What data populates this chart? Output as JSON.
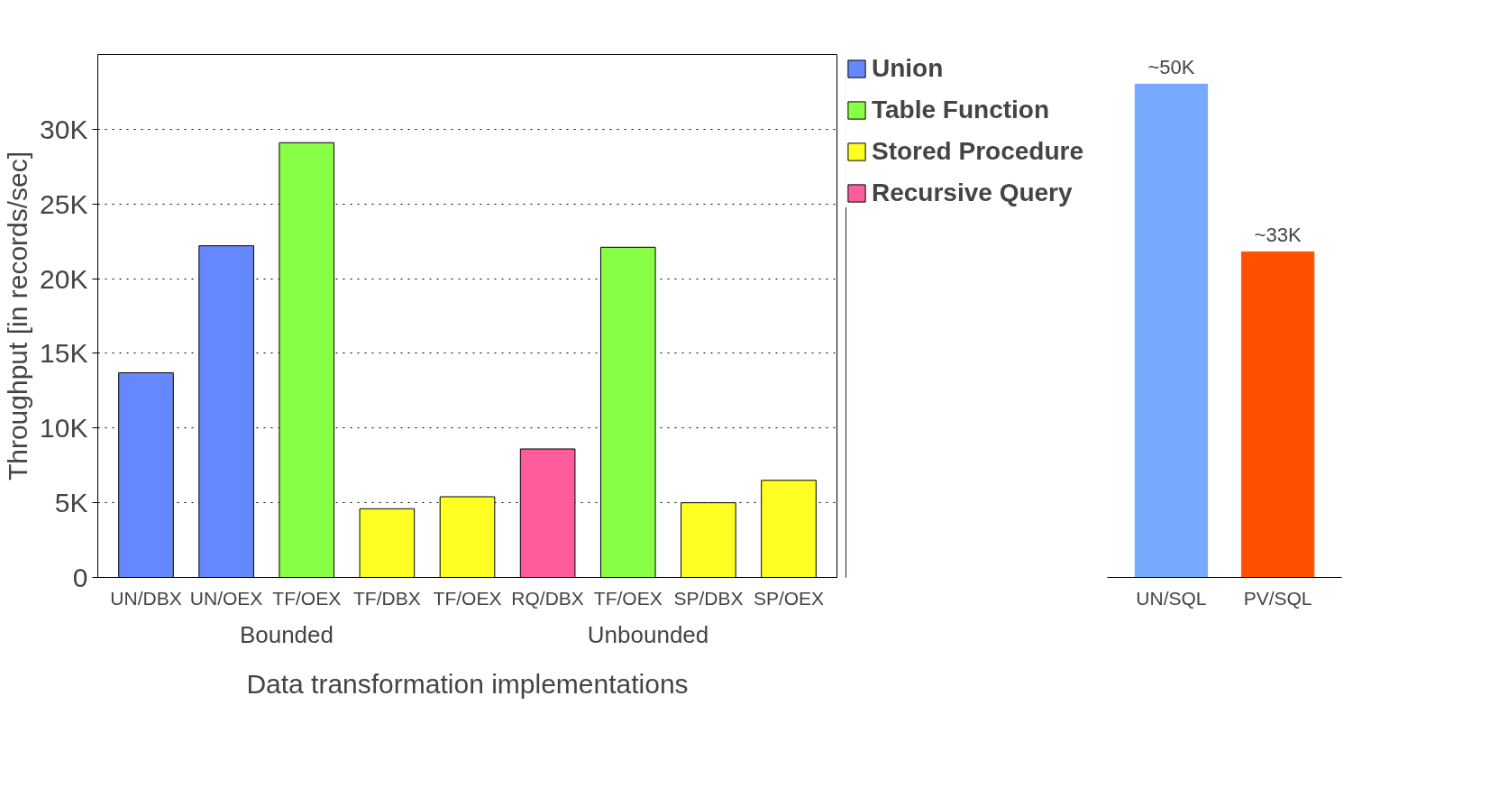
{
  "chart_data": [
    {
      "type": "bar",
      "ylabel": "Throughput [in records/sec]",
      "xlabel": "Data transformation implementations",
      "categories": [
        "UN/DBX",
        "UN/OEX",
        "TF/OEX",
        "TF/DBX",
        "TF/OEX",
        "RQ/DBX",
        "TF/OEX",
        "SP/DBX",
        "SP/OEX"
      ],
      "series": [
        {
          "name": "Union",
          "color": "#6688ff",
          "values": [
            13700,
            22200,
            null,
            null,
            null,
            null,
            null,
            null,
            null
          ]
        },
        {
          "name": "Table Function",
          "color": "#88ff44",
          "values": [
            null,
            null,
            29100,
            null,
            null,
            null,
            22100,
            null,
            null
          ]
        },
        {
          "name": "Stored Procedure",
          "color": "#ffff22",
          "values": [
            null,
            null,
            null,
            4600,
            5400,
            null,
            null,
            5000,
            6500
          ]
        },
        {
          "name": "Recursive Query",
          "color": "#ff5c9c",
          "values": [
            null,
            null,
            null,
            null,
            null,
            8600,
            null,
            null,
            null
          ]
        }
      ],
      "ylim": [
        0,
        35000
      ],
      "yticks": [
        {
          "value": 0,
          "label": "0"
        },
        {
          "value": 5000,
          "label": "5K"
        },
        {
          "value": 10000,
          "label": "10K"
        },
        {
          "value": 15000,
          "label": "15K"
        },
        {
          "value": 20000,
          "label": "20K"
        },
        {
          "value": 25000,
          "label": "25K"
        },
        {
          "value": 30000,
          "label": "30K"
        }
      ],
      "grid": "y",
      "legend": "right",
      "annotations": [
        "Bounded",
        "Unbounded"
      ]
    },
    {
      "type": "bar",
      "categories": [
        "UN/SQL",
        "PV/SQL"
      ],
      "values": [
        50000,
        33000
      ],
      "colors": [
        "#77aaff",
        "#ff5000"
      ],
      "value_labels": [
        "~50K",
        "~33K"
      ],
      "tick_labels": "x"
    }
  ]
}
